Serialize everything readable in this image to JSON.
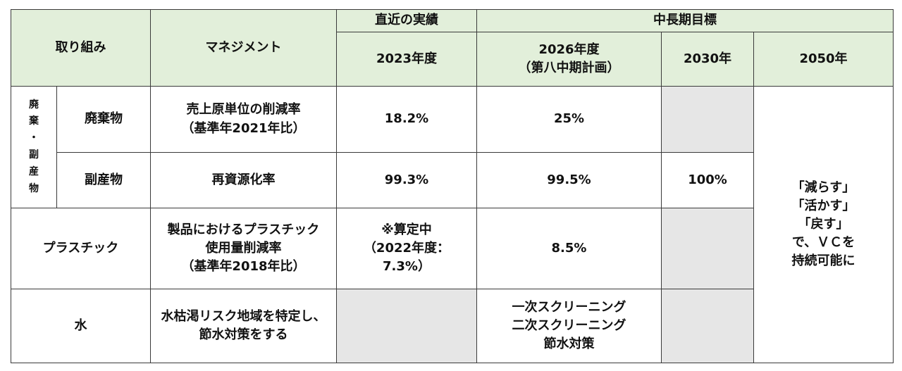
{
  "header": {
    "torikumi": "取り組み",
    "management": "マネジメント",
    "recent_group": "直近の実績",
    "target_group": "中長期目標",
    "y2023": "2023年度",
    "y2026_line1": "2026年度",
    "y2026_line2": "（第八中期計画）",
    "y2030": "2030年",
    "y2050": "2050年"
  },
  "side_group": {
    "chars": [
      "廃",
      "棄",
      "・",
      "副",
      "産",
      "物"
    ]
  },
  "rows": {
    "waste": {
      "label": "廃棄物",
      "mgmt_line1": "売上原単位の削減率",
      "mgmt_line2": "（基準年2021年比）",
      "v2023": "18.2%",
      "v2026": "25%"
    },
    "byproduct": {
      "label": "副産物",
      "mgmt": "再資源化率",
      "v2023": "99.3%",
      "v2026": "99.5%",
      "v2030": "100%"
    },
    "plastic": {
      "label": "プラスチック",
      "mgmt_line1": "製品におけるプラスチック",
      "mgmt_line2": "使用量削減率",
      "mgmt_line3": "（基準年2018年比）",
      "v2023_line1": "※算定中",
      "v2023_line2": "（2022年度：",
      "v2023_line3": "7.3%）",
      "v2026": "8.5%"
    },
    "water": {
      "label": "水",
      "mgmt_line1": "水枯渇リスク地域を特定し、",
      "mgmt_line2": "節水対策をする",
      "v2026_line1": "一次スクリーニング",
      "v2026_line2": "二次スクリーニング",
      "v2026_line3": "節水対策"
    }
  },
  "goal2050": {
    "line1": "「減らす」",
    "line2": "「活かす」",
    "line3": "「戻す」",
    "line4": "で、ＶＣを",
    "line5": "持続可能に"
  }
}
